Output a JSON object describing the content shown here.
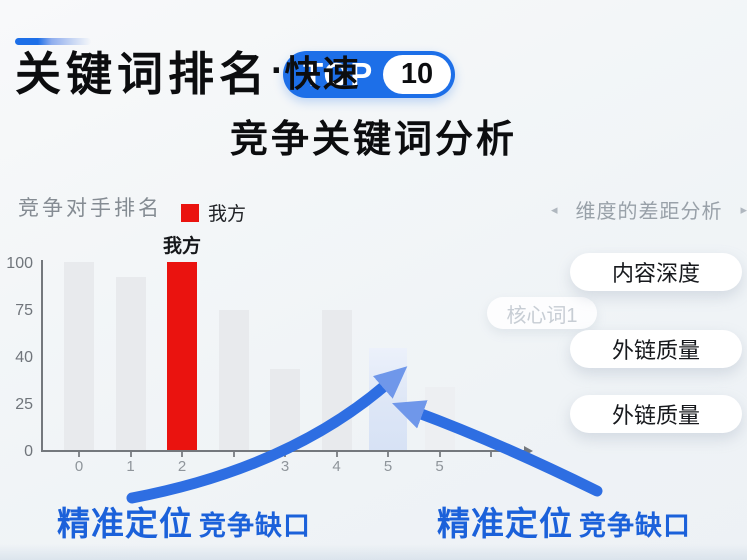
{
  "header": {
    "title_main": "关键词排名",
    "title_dot": "·",
    "title_fast": "快速",
    "badge": {
      "top_label": "TOP",
      "number": "10"
    },
    "subtitle": "竞争关键词分析"
  },
  "chart_data": {
    "type": "bar",
    "title": "竞争对手排名",
    "legend": [
      {
        "name": "我方",
        "color": "#ea130f"
      }
    ],
    "legend_position": "top",
    "grid": false,
    "x_axis_arrow": true,
    "ylim": [
      0,
      100
    ],
    "yticks": [
      0,
      25,
      40,
      75,
      100
    ],
    "bars": [
      {
        "category": "0",
        "value": 100,
        "style": "default"
      },
      {
        "category": "1",
        "value": 92,
        "style": "default"
      },
      {
        "category": "2",
        "value": 100,
        "style": "ours",
        "label": "我方"
      },
      {
        "category": "",
        "value": 74,
        "style": "default"
      },
      {
        "category": "3",
        "value": 36,
        "style": "default"
      },
      {
        "category": "4",
        "value": 74,
        "style": "default"
      },
      {
        "category": "5",
        "value": 46,
        "style": "highlight"
      },
      {
        "category": "5",
        "value": 30,
        "style": "faint"
      }
    ],
    "extra_ticks": [
      ""
    ]
  },
  "floating_tag": {
    "label": "核心词1"
  },
  "side_panel": {
    "header": "维度的差距分析",
    "prev_arrow": "◂",
    "next_arrow": "▸",
    "pills": [
      "内容深度",
      "外链质量",
      "外链质量"
    ]
  },
  "captions": [
    {
      "strong": "精准定位",
      "rest": "竞争缺口"
    },
    {
      "strong": "精准定位",
      "rest": "竞争缺口"
    }
  ],
  "colors": {
    "accent_blue": "#1d6fe8",
    "arrow_blue": "#2e6ee2",
    "arrowhead_blue": "#6f97ea",
    "caption_blue": "#1b61da",
    "ours_red": "#ea130f",
    "bar_gray": "#e8eaed",
    "bar_highlight_blue": "#d7e2f5"
  }
}
